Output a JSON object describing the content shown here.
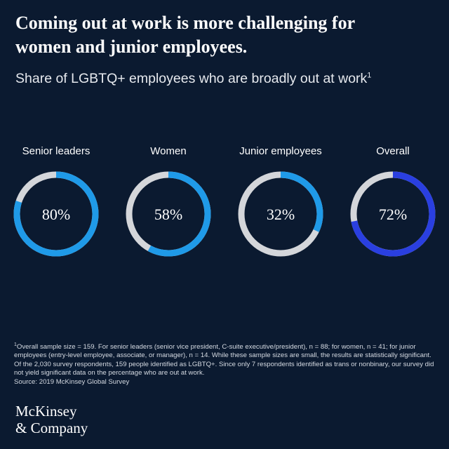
{
  "headline": {
    "line1": "Coming out at work is more challenging for",
    "line2": "women and junior employees."
  },
  "subtitle": {
    "text": "Share of LGBTQ+ employees who are broadly out at work",
    "footnote_ref": "1"
  },
  "chart_data": {
    "type": "donut",
    "title": "Share of LGBTQ+ employees who are broadly out at work",
    "series": [
      {
        "label": "Senior leaders",
        "value": 80,
        "display": "80%",
        "color": "#1f9ae8"
      },
      {
        "label": "Women",
        "value": 58,
        "display": "58%",
        "color": "#1f9ae8"
      },
      {
        "label": "Junior employees",
        "value": 32,
        "display": "32%",
        "color": "#1f9ae8"
      },
      {
        "label": "Overall",
        "value": 72,
        "display": "72%",
        "color": "#2a3fe0"
      }
    ],
    "track_color": "#d4d6da",
    "max": 100
  },
  "footnote": {
    "marker": "1",
    "text": "Overall sample size = 159. For senior leaders (senior vice president, C-suite executive/president), n = 88; for women, n = 41; for junior employees (entry-level employee, associate, or manager), n = 14. While these sample sizes are small, the results are statistically significant. Of the 2,030 survey respondents, 159 people identified as LGBTQ+. Since only 7 respondents identified as trans or nonbinary, our survey did not yield significant data on the percentage who are out at work.",
    "source": "Source: 2019 McKinsey Global Survey"
  },
  "logo": {
    "line1": "McKinsey",
    "line2": "& Company"
  }
}
